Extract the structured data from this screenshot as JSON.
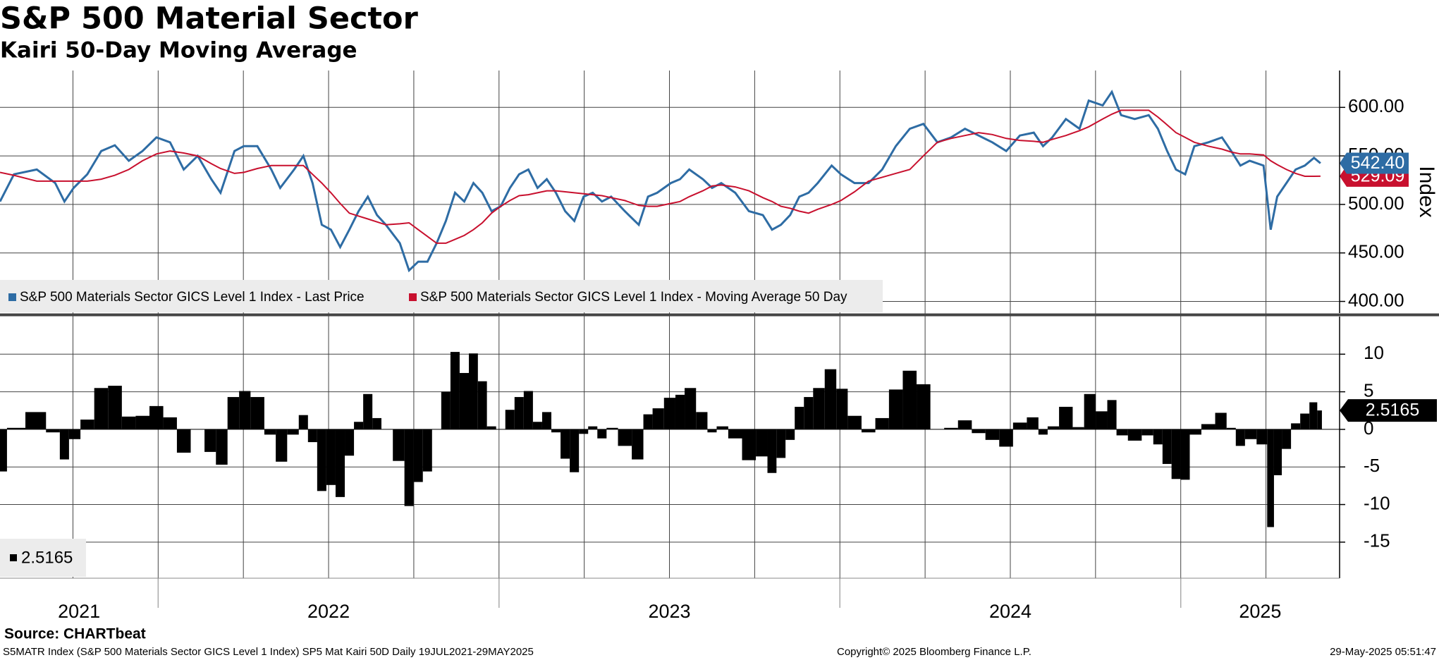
{
  "chart_data": [
    {
      "type": "line",
      "title": "S&P 500 Material Sector",
      "subtitle": "Kairi 50-Day Moving Average",
      "y_label": "Index",
      "x": [
        2021.536,
        2021.577,
        2021.644,
        2021.698,
        2021.725,
        2021.752,
        2021.792,
        2021.833,
        2021.873,
        2021.914,
        2021.954,
        2021.995,
        2022.035,
        2022.075,
        2022.116,
        2022.156,
        2022.183,
        2022.224,
        2022.251,
        2022.291,
        2022.332,
        2022.358,
        2022.399,
        2022.426,
        2022.453,
        2022.48,
        2022.507,
        2022.534,
        2022.561,
        2022.588,
        2022.615,
        2022.642,
        2022.668,
        2022.709,
        2022.736,
        2022.763,
        2022.79,
        2022.817,
        2022.844,
        2022.871,
        2022.898,
        2022.925,
        2022.951,
        2022.978,
        2023.005,
        2023.032,
        2023.059,
        2023.086,
        2023.113,
        2023.14,
        2023.167,
        2023.194,
        2023.221,
        2023.248,
        2023.275,
        2023.302,
        2023.329,
        2023.369,
        2023.41,
        2023.437,
        2023.464,
        2023.504,
        2023.531,
        2023.558,
        2023.598,
        2023.625,
        2023.652,
        2023.693,
        2023.733,
        2023.774,
        2023.801,
        2023.827,
        2023.854,
        2023.881,
        2023.908,
        2023.935,
        2023.976,
        2024.003,
        2024.043,
        2024.084,
        2024.124,
        2024.164,
        2024.205,
        2024.245,
        2024.286,
        2024.326,
        2024.367,
        2024.407,
        2024.447,
        2024.488,
        2024.528,
        2024.569,
        2024.596,
        2024.623,
        2024.663,
        2024.703,
        2024.73,
        2024.771,
        2024.798,
        2024.825,
        2024.865,
        2024.906,
        2024.933,
        2024.96,
        2024.986,
        2025.013,
        2025.04,
        2025.081,
        2025.121,
        2025.148,
        2025.175,
        2025.202,
        2025.243,
        2025.264,
        2025.283,
        2025.31,
        2025.337,
        2025.364,
        2025.391,
        2025.41
      ],
      "xlim": [
        2021.536,
        2025.466
      ],
      "xticks": [
        2021,
        2022,
        2023,
        2024,
        2025
      ],
      "xgrid": [
        2021.75,
        2022,
        2022.25,
        2022.5,
        2022.75,
        2023,
        2023.25,
        2023.5,
        2023.75,
        2024,
        2024.25,
        2024.5,
        2024.75,
        2025,
        2025.25
      ],
      "ylim": [
        388,
        638
      ],
      "yticks": [
        {
          "value": 400,
          "label": "400.00"
        },
        {
          "value": 450,
          "label": "450.00"
        },
        {
          "value": 500,
          "label": "500.00"
        },
        {
          "value": 550,
          "label": "550.00"
        },
        {
          "value": 600,
          "label": "600.00"
        }
      ],
      "grid": true,
      "series": [
        {
          "name": "S&P 500 Materials Sector GICS Level 1 Index - Last Price",
          "color": "#2e6ca4",
          "last_value_label": "542.40",
          "values": [
            503,
            531,
            536,
            522,
            503,
            517,
            531,
            555,
            561,
            545,
            555,
            569,
            564,
            536,
            550,
            526,
            512,
            555,
            560,
            560,
            536,
            517,
            536,
            550,
            522,
            479,
            474,
            456,
            474,
            493,
            508,
            489,
            479,
            460,
            432,
            441,
            441,
            460,
            483,
            512,
            503,
            522,
            512,
            493,
            498,
            517,
            531,
            536,
            517,
            526,
            512,
            493,
            483,
            508,
            512,
            503,
            508,
            493,
            479,
            508,
            512,
            522,
            526,
            536,
            526,
            517,
            522,
            512,
            493,
            489,
            474,
            479,
            489,
            508,
            512,
            522,
            540,
            531,
            522,
            522,
            536,
            560,
            578,
            583,
            564,
            569,
            578,
            571,
            564,
            555,
            571,
            574,
            560,
            569,
            588,
            578,
            607,
            602,
            616,
            592,
            588,
            592,
            578,
            555,
            536,
            531,
            560,
            564,
            569,
            555,
            540,
            545,
            540,
            474,
            508,
            522,
            536,
            540,
            548,
            542.4
          ]
        },
        {
          "name": "S&P 500 Materials Sector GICS Level 1 Index - Moving Average 50 Day",
          "color": "#c8102e",
          "last_value_label": "529.09",
          "values": [
            533,
            530,
            524,
            524,
            524,
            524,
            524,
            526,
            530,
            536,
            545,
            552,
            555,
            553,
            550,
            542,
            537,
            532,
            533,
            537,
            540,
            540,
            540,
            540,
            531,
            522,
            512,
            501,
            491,
            488,
            485,
            482,
            479,
            480,
            481,
            474,
            467,
            460,
            460,
            464,
            468,
            474,
            481,
            491,
            498,
            504,
            509,
            510,
            512,
            514,
            514,
            513,
            512,
            511,
            510,
            509,
            507,
            504,
            499,
            498,
            498,
            501,
            503,
            508,
            514,
            519,
            520,
            518,
            514,
            507,
            503,
            498,
            496,
            493,
            491,
            495,
            500,
            504,
            513,
            524,
            528,
            532,
            536,
            550,
            564,
            568,
            571,
            574,
            572,
            568,
            566,
            565,
            564,
            567,
            571,
            576,
            580,
            588,
            593,
            597,
            597,
            597,
            590,
            582,
            574,
            569,
            564,
            560,
            557,
            554,
            552,
            552,
            551,
            545,
            541,
            536,
            532,
            529,
            529,
            529.09
          ]
        }
      ]
    },
    {
      "type": "bar",
      "x": [
        2021.536,
        2021.577,
        2021.644,
        2021.698,
        2021.725,
        2021.752,
        2021.792,
        2021.833,
        2021.873,
        2021.914,
        2021.954,
        2021.995,
        2022.035,
        2022.075,
        2022.116,
        2022.156,
        2022.183,
        2022.224,
        2022.251,
        2022.291,
        2022.332,
        2022.358,
        2022.399,
        2022.426,
        2022.453,
        2022.48,
        2022.507,
        2022.534,
        2022.561,
        2022.588,
        2022.615,
        2022.642,
        2022.668,
        2022.709,
        2022.736,
        2022.763,
        2022.79,
        2022.817,
        2022.844,
        2022.871,
        2022.898,
        2022.925,
        2022.951,
        2022.978,
        2023.005,
        2023.032,
        2023.059,
        2023.086,
        2023.113,
        2023.14,
        2023.167,
        2023.194,
        2023.221,
        2023.248,
        2023.275,
        2023.302,
        2023.329,
        2023.369,
        2023.41,
        2023.437,
        2023.464,
        2023.504,
        2023.531,
        2023.558,
        2023.598,
        2023.625,
        2023.652,
        2023.693,
        2023.733,
        2023.774,
        2023.801,
        2023.827,
        2023.854,
        2023.881,
        2023.908,
        2023.935,
        2023.976,
        2024.003,
        2024.043,
        2024.084,
        2024.124,
        2024.164,
        2024.205,
        2024.245,
        2024.286,
        2024.326,
        2024.367,
        2024.407,
        2024.447,
        2024.488,
        2024.528,
        2024.569,
        2024.596,
        2024.623,
        2024.663,
        2024.703,
        2024.73,
        2024.771,
        2024.798,
        2024.825,
        2024.865,
        2024.906,
        2024.933,
        2024.96,
        2024.986,
        2025.013,
        2025.04,
        2025.081,
        2025.121,
        2025.148,
        2025.175,
        2025.202,
        2025.243,
        2025.264,
        2025.283,
        2025.31,
        2025.337,
        2025.364,
        2025.391,
        2025.41
      ],
      "xlim": [
        2021.536,
        2025.466
      ],
      "ylim": [
        -19.8,
        15
      ],
      "yticks": [
        -15,
        -10,
        -5,
        0,
        5,
        10
      ],
      "grid": true,
      "series": [
        {
          "color": "#000000",
          "last_value_label": "2.5165",
          "values": [
            -5.6,
            0.2,
            2.3,
            -0.4,
            -4.0,
            -1.3,
            1.3,
            5.5,
            5.8,
            1.7,
            1.8,
            3.1,
            1.6,
            -3.1,
            0.0,
            -3.0,
            -4.7,
            4.3,
            5.1,
            4.3,
            -0.7,
            -4.3,
            -0.7,
            1.9,
            -1.7,
            -8.2,
            -7.4,
            -9.0,
            -3.5,
            1.0,
            4.7,
            1.5,
            0.0,
            -4.2,
            -10.2,
            -7.0,
            -5.6,
            0.0,
            5.0,
            10.3,
            7.5,
            10.1,
            6.4,
            0.4,
            0.0,
            2.6,
            4.3,
            5.1,
            1.0,
            2.3,
            -0.4,
            -3.9,
            -5.7,
            -0.6,
            0.4,
            -1.2,
            0.2,
            -2.2,
            -4.0,
            2.0,
            2.8,
            4.2,
            4.6,
            5.5,
            2.3,
            -0.4,
            0.4,
            -1.2,
            -4.1,
            -3.6,
            -5.8,
            -3.8,
            -1.4,
            3.0,
            4.3,
            5.5,
            8.0,
            5.4,
            1.8,
            -0.4,
            1.5,
            5.3,
            7.8,
            6.0,
            0.0,
            0.2,
            1.2,
            -0.5,
            -1.4,
            -2.3,
            0.9,
            1.6,
            -0.7,
            0.4,
            3.0,
            0.3,
            4.7,
            2.4,
            3.9,
            -0.8,
            -1.5,
            -0.8,
            -2.0,
            -4.6,
            -6.6,
            -6.7,
            -0.7,
            0.7,
            2.2,
            0.2,
            -2.2,
            -1.3,
            -2.0,
            -13.0,
            -6.1,
            -2.6,
            0.8,
            2.1,
            3.6,
            2.5165
          ]
        }
      ]
    }
  ],
  "footer": {
    "source": "Source: CHARTbeat",
    "ticker": "S5MATR Index (S&P 500 Materials Sector GICS Level 1 Index) SP5 Mat Kairi 50D  Daily 19JUL2021-29MAY2025",
    "copyright": "Copyright© 2025 Bloomberg Finance L.P.",
    "timestamp": "29-May-2025 05:51:47"
  }
}
